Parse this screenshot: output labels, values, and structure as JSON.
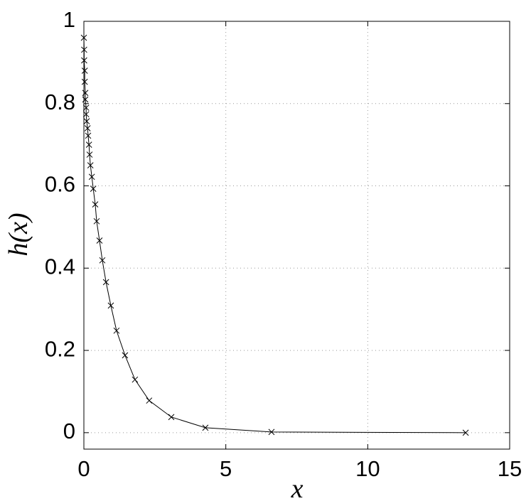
{
  "chart_data": {
    "type": "line",
    "x_label": "x",
    "y_label": "h(x)",
    "x": [
      0.0,
      0.01,
      0.01,
      0.03,
      0.03,
      0.05,
      0.05,
      0.08,
      0.08,
      0.1,
      0.13,
      0.15,
      0.18,
      0.2,
      0.23,
      0.28,
      0.33,
      0.4,
      0.45,
      0.55,
      0.65,
      0.78,
      0.95,
      1.15,
      1.45,
      1.8,
      2.3,
      3.08,
      4.28,
      6.61,
      13.45
    ],
    "series": [
      {
        "color": "#000000",
        "marker": "x",
        "values": [
          0.96,
          0.931,
          0.905,
          0.88,
          0.853,
          0.826,
          0.81,
          0.79,
          0.774,
          0.757,
          0.74,
          0.722,
          0.7,
          0.676,
          0.65,
          0.622,
          0.593,
          0.555,
          0.514,
          0.467,
          0.419,
          0.366,
          0.309,
          0.248,
          0.188,
          0.129,
          0.078,
          0.038,
          0.012,
          0.0017,
          0.0
        ]
      }
    ],
    "xlim": [
      0,
      15
    ],
    "ylim": [
      -0.04,
      1
    ],
    "xticks": [
      0,
      5,
      10,
      15
    ],
    "yticks": [
      0,
      0.2,
      0.4,
      0.6,
      0.8,
      1
    ],
    "grid": true
  }
}
